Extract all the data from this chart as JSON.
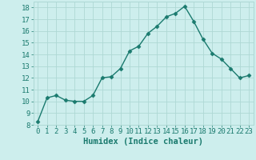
{
  "x": [
    0,
    1,
    2,
    3,
    4,
    5,
    6,
    7,
    8,
    9,
    10,
    11,
    12,
    13,
    14,
    15,
    16,
    17,
    18,
    19,
    20,
    21,
    22,
    23
  ],
  "y": [
    8.3,
    10.3,
    10.5,
    10.1,
    10.0,
    10.0,
    10.5,
    12.0,
    12.1,
    12.8,
    14.3,
    14.7,
    15.8,
    16.4,
    17.2,
    17.5,
    18.1,
    16.8,
    15.3,
    14.1,
    13.6,
    12.8,
    12.0,
    12.2
  ],
  "line_color": "#1a7a6e",
  "marker": "D",
  "marker_size": 2.5,
  "bg_color": "#cdeeed",
  "grid_color": "#aed8d5",
  "xlabel": "Humidex (Indice chaleur)",
  "xlim": [
    -0.5,
    23.5
  ],
  "ylim": [
    8,
    18.5
  ],
  "yticks": [
    8,
    9,
    10,
    11,
    12,
    13,
    14,
    15,
    16,
    17,
    18
  ],
  "xticks": [
    0,
    1,
    2,
    3,
    4,
    5,
    6,
    7,
    8,
    9,
    10,
    11,
    12,
    13,
    14,
    15,
    16,
    17,
    18,
    19,
    20,
    21,
    22,
    23
  ],
  "xlabel_fontsize": 7.5,
  "tick_fontsize": 6.5,
  "line_width": 1.0
}
